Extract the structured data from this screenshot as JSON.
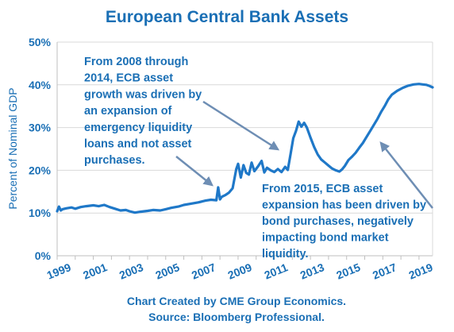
{
  "chart_data": {
    "type": "line",
    "title": "European Central Bank Assets",
    "ylabel": "Percent of Nominal GDP",
    "xlabel": "",
    "ylim": [
      0,
      50
    ],
    "xlim": [
      1999,
      2019.75
    ],
    "y_ticks": [
      "0%",
      "10%",
      "20%",
      "30%",
      "40%",
      "50%"
    ],
    "x_ticks": [
      "1999",
      "2001",
      "2003",
      "2005",
      "2007",
      "2009",
      "2011",
      "2013",
      "2015",
      "2017",
      "2019"
    ],
    "grid": true,
    "legend": "none",
    "series": [
      {
        "color": "#1f78c8",
        "x": [
          1999.0,
          1999.1,
          1999.2,
          1999.3,
          1999.5,
          1999.8,
          2000.0,
          2000.3,
          2000.6,
          2001.0,
          2001.3,
          2001.6,
          2001.9,
          2002.2,
          2002.5,
          2002.8,
          2003.0,
          2003.3,
          2003.6,
          2004.0,
          2004.3,
          2004.7,
          2005.0,
          2005.3,
          2005.7,
          2006.0,
          2006.4,
          2006.8,
          2007.2,
          2007.5,
          2007.8,
          2007.9,
          2008.0,
          2008.1,
          2008.3,
          2008.5,
          2008.7,
          2008.9,
          2009.0,
          2009.15,
          2009.3,
          2009.45,
          2009.6,
          2009.75,
          2009.9,
          2010.1,
          2010.3,
          2010.45,
          2010.6,
          2010.8,
          2011.0,
          2011.2,
          2011.4,
          2011.6,
          2011.75,
          2011.9,
          2012.05,
          2012.2,
          2012.35,
          2012.5,
          2012.65,
          2012.8,
          2013.0,
          2013.2,
          2013.4,
          2013.6,
          2013.8,
          2014.0,
          2014.2,
          2014.4,
          2014.6,
          2014.75,
          2014.9,
          2015.1,
          2015.3,
          2015.5,
          2015.7,
          2015.9,
          2016.1,
          2016.3,
          2016.5,
          2016.7,
          2016.9,
          2017.1,
          2017.3,
          2017.5,
          2017.8,
          2018.1,
          2018.4,
          2018.7,
          2019.0,
          2019.2,
          2019.4,
          2019.6,
          2019.75
        ],
        "values": [
          10.4,
          11.5,
          10.6,
          10.9,
          11.1,
          11.3,
          11.0,
          11.4,
          11.6,
          11.8,
          11.6,
          11.9,
          11.4,
          11.0,
          10.6,
          10.7,
          10.4,
          10.1,
          10.3,
          10.5,
          10.7,
          10.6,
          10.9,
          11.2,
          11.5,
          11.9,
          12.2,
          12.5,
          12.9,
          13.1,
          13.0,
          16.0,
          13.2,
          13.8,
          14.2,
          14.8,
          15.8,
          20.3,
          21.5,
          18.3,
          21.2,
          19.4,
          19.0,
          21.8,
          19.8,
          20.9,
          22.2,
          19.5,
          20.6,
          20.0,
          19.6,
          20.3,
          19.6,
          20.8,
          20.1,
          23.8,
          27.5,
          29.2,
          31.4,
          30.2,
          31.1,
          30.0,
          27.7,
          25.5,
          23.7,
          22.5,
          21.8,
          21.1,
          20.4,
          20.0,
          19.7,
          20.2,
          21.0,
          22.4,
          23.2,
          24.1,
          25.3,
          26.4,
          27.8,
          29.2,
          30.6,
          32.0,
          33.6,
          35.0,
          36.6,
          37.7,
          38.6,
          39.3,
          39.8,
          40.1,
          40.2,
          40.1,
          40.0,
          39.7,
          39.4
        ]
      }
    ],
    "annotations": [
      {
        "lines": [
          "From 2008 through",
          "2014, ECB asset",
          "growth was driven by",
          "an expansion of",
          "emergency liquidity",
          "loans and not asset",
          "purchases."
        ]
      },
      {
        "lines": [
          "From 2015, ECB asset",
          "expansion has been driven by",
          "bond purchases, negatively",
          "impacting bond market",
          "liquidity."
        ]
      }
    ],
    "footnotes": [
      "Chart Created by CME Group Economics.",
      "Source:  Bloomberg Professional."
    ]
  }
}
